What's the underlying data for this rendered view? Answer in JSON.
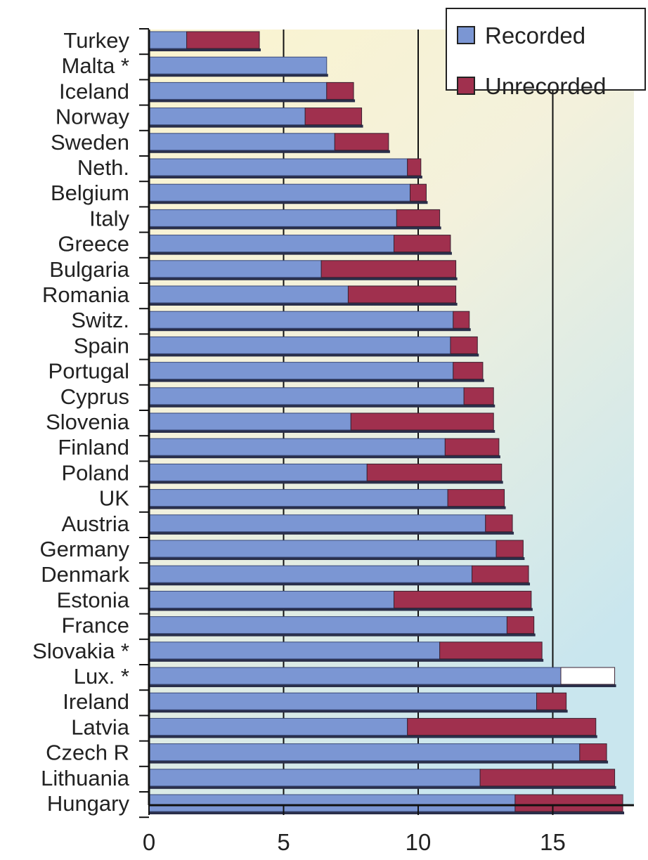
{
  "chart_data": {
    "type": "bar",
    "orientation": "horizontal",
    "stacked": true,
    "title": "",
    "xlabel": "",
    "ylabel": "",
    "xlim": [
      0,
      18
    ],
    "xticks": [
      0,
      5,
      10,
      15
    ],
    "grid": "vertical lines at 5, 10, 15",
    "legend_position": "top-right",
    "categories": [
      "Turkey",
      "Malta *",
      "Iceland",
      "Norway",
      "Sweden",
      "Neth.",
      "Belgium",
      "Italy",
      "Greece",
      "Bulgaria",
      "Romania",
      "Switz.",
      "Spain",
      "Portugal",
      "Cyprus",
      "Slovenia",
      "Finland",
      "Poland",
      "UK",
      "Austria",
      "Germany",
      "Denmark",
      "Estonia",
      "France",
      "Slovakia *",
      "Lux. *",
      "Ireland",
      "Latvia",
      "Czech R",
      "Lithuania",
      "Hungary"
    ],
    "series": [
      {
        "name": "Recorded",
        "color": "#7b96d3",
        "values": [
          1.4,
          6.6,
          6.6,
          5.8,
          6.9,
          9.6,
          9.7,
          9.2,
          9.1,
          6.4,
          7.4,
          11.3,
          11.2,
          11.3,
          11.7,
          7.5,
          11.0,
          8.1,
          11.1,
          12.5,
          12.9,
          12.0,
          9.1,
          13.3,
          10.8,
          15.3,
          14.4,
          9.6,
          16.0,
          12.3,
          13.6
        ]
      },
      {
        "name": "Unrecorded",
        "color": "#a0304e",
        "values": [
          2.7,
          0,
          1.0,
          2.1,
          2.0,
          0.5,
          0.6,
          1.6,
          2.1,
          5.0,
          4.0,
          0.6,
          1.0,
          1.1,
          1.1,
          5.3,
          2.0,
          5.0,
          2.1,
          1.0,
          1.0,
          2.1,
          5.1,
          1.0,
          3.8,
          2.0,
          1.1,
          7.0,
          1.0,
          5.0,
          4.0
        ]
      }
    ],
    "special": {
      "Lux. *": {
        "unrecorded_fill": "#ffffff"
      }
    }
  }
}
